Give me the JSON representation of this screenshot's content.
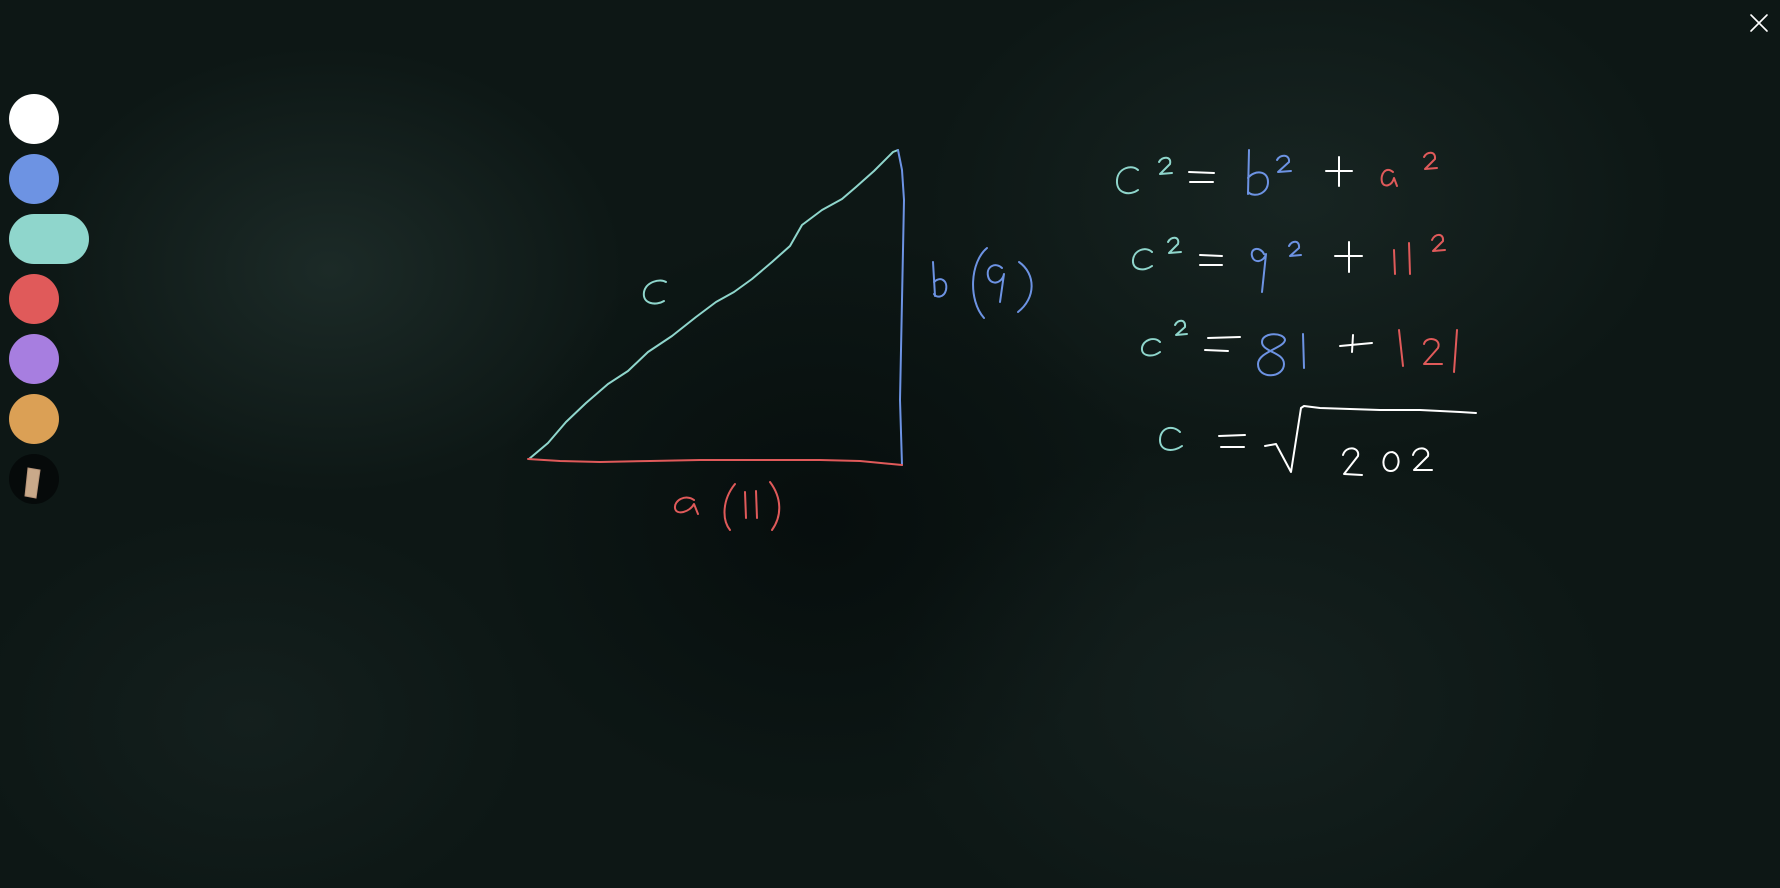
{
  "palette": {
    "colors": [
      {
        "name": "white",
        "hex": "#ffffff",
        "selected": false
      },
      {
        "name": "blue",
        "hex": "#6d93e3",
        "selected": false
      },
      {
        "name": "teal",
        "hex": "#8fd6cc",
        "selected": true
      },
      {
        "name": "red",
        "hex": "#e05a5a",
        "selected": false
      },
      {
        "name": "purple",
        "hex": "#a77ee0",
        "selected": false
      },
      {
        "name": "orange",
        "hex": "#dba055",
        "selected": false
      }
    ],
    "eraser_icon": "eraser-icon"
  },
  "close_icon": "close-icon",
  "ink": {
    "white": "#ffffff",
    "blue": "#6d93e3",
    "teal": "#8fd6cc",
    "red": "#e05a5a"
  }
}
